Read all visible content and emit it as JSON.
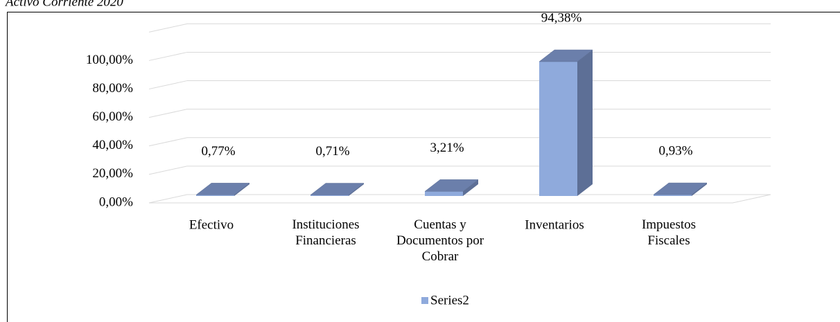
{
  "chart_data": {
    "type": "bar3d",
    "title": "Activo Corriente 2020",
    "categories": [
      "Efectivo",
      "Instituciones\nFinancieras",
      "Cuentas y\nDocumentos por\nCobrar",
      "Inventarios",
      "Impuestos\nFiscales"
    ],
    "series": [
      {
        "name": "Series2",
        "color": "#8faadc",
        "values": [
          0.77,
          0.71,
          3.21,
          94.38,
          0.93
        ],
        "value_labels": [
          "0,77%",
          "0,71%",
          "3,21%",
          "94,38%",
          "0,93%"
        ]
      }
    ],
    "ylim": [
      0,
      120
    ],
    "yticks": [
      {
        "value": 0,
        "label": "0,00%"
      },
      {
        "value": 20,
        "label": "20,00%"
      },
      {
        "value": 40,
        "label": "40,00%"
      },
      {
        "value": 60,
        "label": "60,00%"
      },
      {
        "value": 80,
        "label": "80,00%"
      },
      {
        "value": 100,
        "label": "100,00%"
      }
    ],
    "grid": true,
    "legend": "bottom"
  }
}
